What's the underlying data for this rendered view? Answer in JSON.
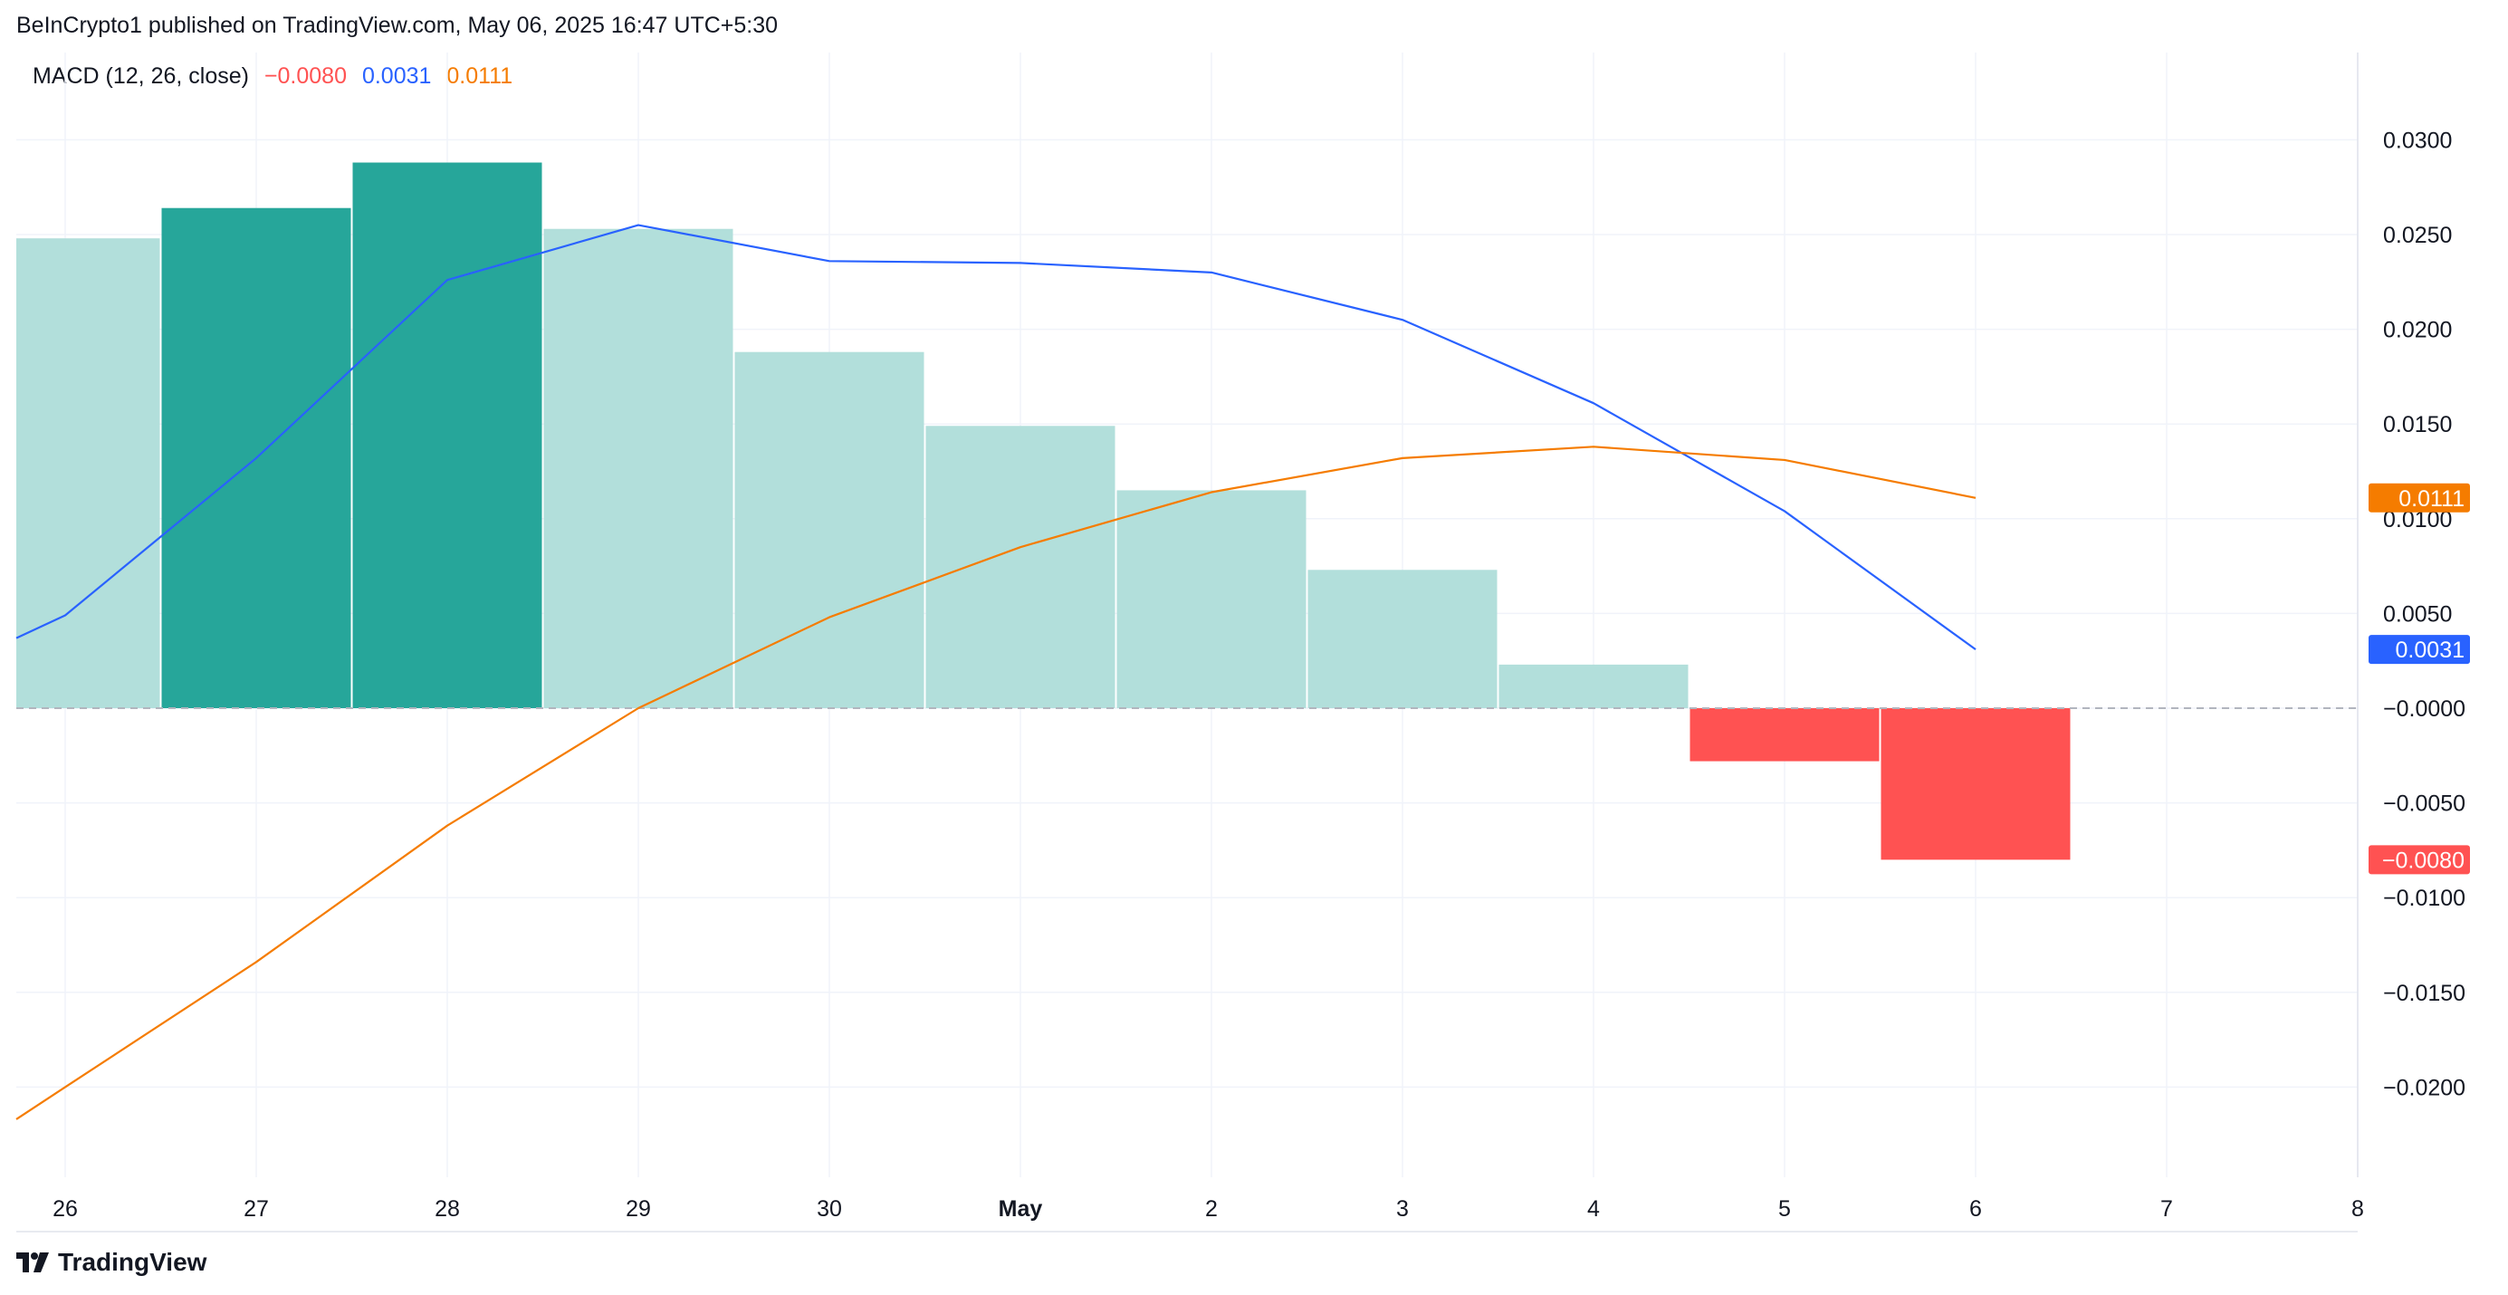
{
  "header": {
    "attribution": "BeInCrypto1 published on TradingView.com, May 06, 2025 16:47 UTC+5:30"
  },
  "legend": {
    "indicator": "MACD (12, 26, close)",
    "histogram_value": "−0.0080",
    "macd_value": "0.0031",
    "signal_value": "0.0111"
  },
  "footer": {
    "brand": "TradingView"
  },
  "colors": {
    "macd_line": "#2962ff",
    "signal_line": "#f57c00",
    "hist_strong_up": "#26a69a",
    "hist_weak_up": "#b2dfdb",
    "hist_down": "#ff5252",
    "grid": "#f0f3fa",
    "zero_line": "#b2b5be"
  },
  "chart_data": {
    "type": "bar",
    "title": "",
    "x_ticks": [
      "26",
      "27",
      "28",
      "29",
      "30",
      "May",
      "2",
      "3",
      "4",
      "5",
      "6",
      "7",
      "8"
    ],
    "y_ticks": [
      "0.0300",
      "0.0250",
      "0.0200",
      "0.0150",
      "0.0100",
      "0.0050",
      "−0.0000",
      "−0.0050",
      "−0.0100",
      "−0.0150",
      "−0.0200"
    ],
    "ylim": [
      -0.025,
      0.0345
    ],
    "grid": true,
    "histogram": {
      "name": "Histogram",
      "x": [
        0,
        1,
        2,
        3,
        4,
        5,
        6,
        7,
        8,
        9,
        10
      ],
      "values": [
        0.0248,
        0.0264,
        0.0288,
        0.0253,
        0.0188,
        0.0149,
        0.0115,
        0.0073,
        0.0023,
        -0.0028,
        -0.008
      ],
      "colors": [
        "#b2dfdb",
        "#26a69a",
        "#26a69a",
        "#b2dfdb",
        "#b2dfdb",
        "#b2dfdb",
        "#b2dfdb",
        "#b2dfdb",
        "#b2dfdb",
        "#ff5252",
        "#ff5252"
      ]
    },
    "series": [
      {
        "name": "MACD",
        "color": "#2962ff",
        "x": [
          -0.27,
          0,
          1,
          2,
          3,
          4,
          5,
          6,
          7,
          8,
          9,
          10
        ],
        "values": [
          0.0037,
          0.0049,
          0.0132,
          0.0226,
          0.0255,
          0.0236,
          0.0235,
          0.023,
          0.0205,
          0.0161,
          0.0104,
          0.0031
        ]
      },
      {
        "name": "Signal",
        "color": "#f57c00",
        "x": [
          -0.27,
          0,
          1,
          2,
          3,
          4,
          5,
          6,
          7,
          8,
          9,
          10
        ],
        "values": [
          -0.0217,
          -0.02,
          -0.0134,
          -0.0062,
          0.0,
          0.0048,
          0.0085,
          0.0114,
          0.0132,
          0.0138,
          0.0131,
          0.0111
        ]
      }
    ],
    "price_labels": [
      {
        "text": "0.0111",
        "value": 0.0111,
        "color": "#f57c00"
      },
      {
        "text": "0.0031",
        "value": 0.0031,
        "color": "#2962ff"
      },
      {
        "text": "−0.0080",
        "value": -0.008,
        "color": "#ff5252"
      }
    ]
  }
}
